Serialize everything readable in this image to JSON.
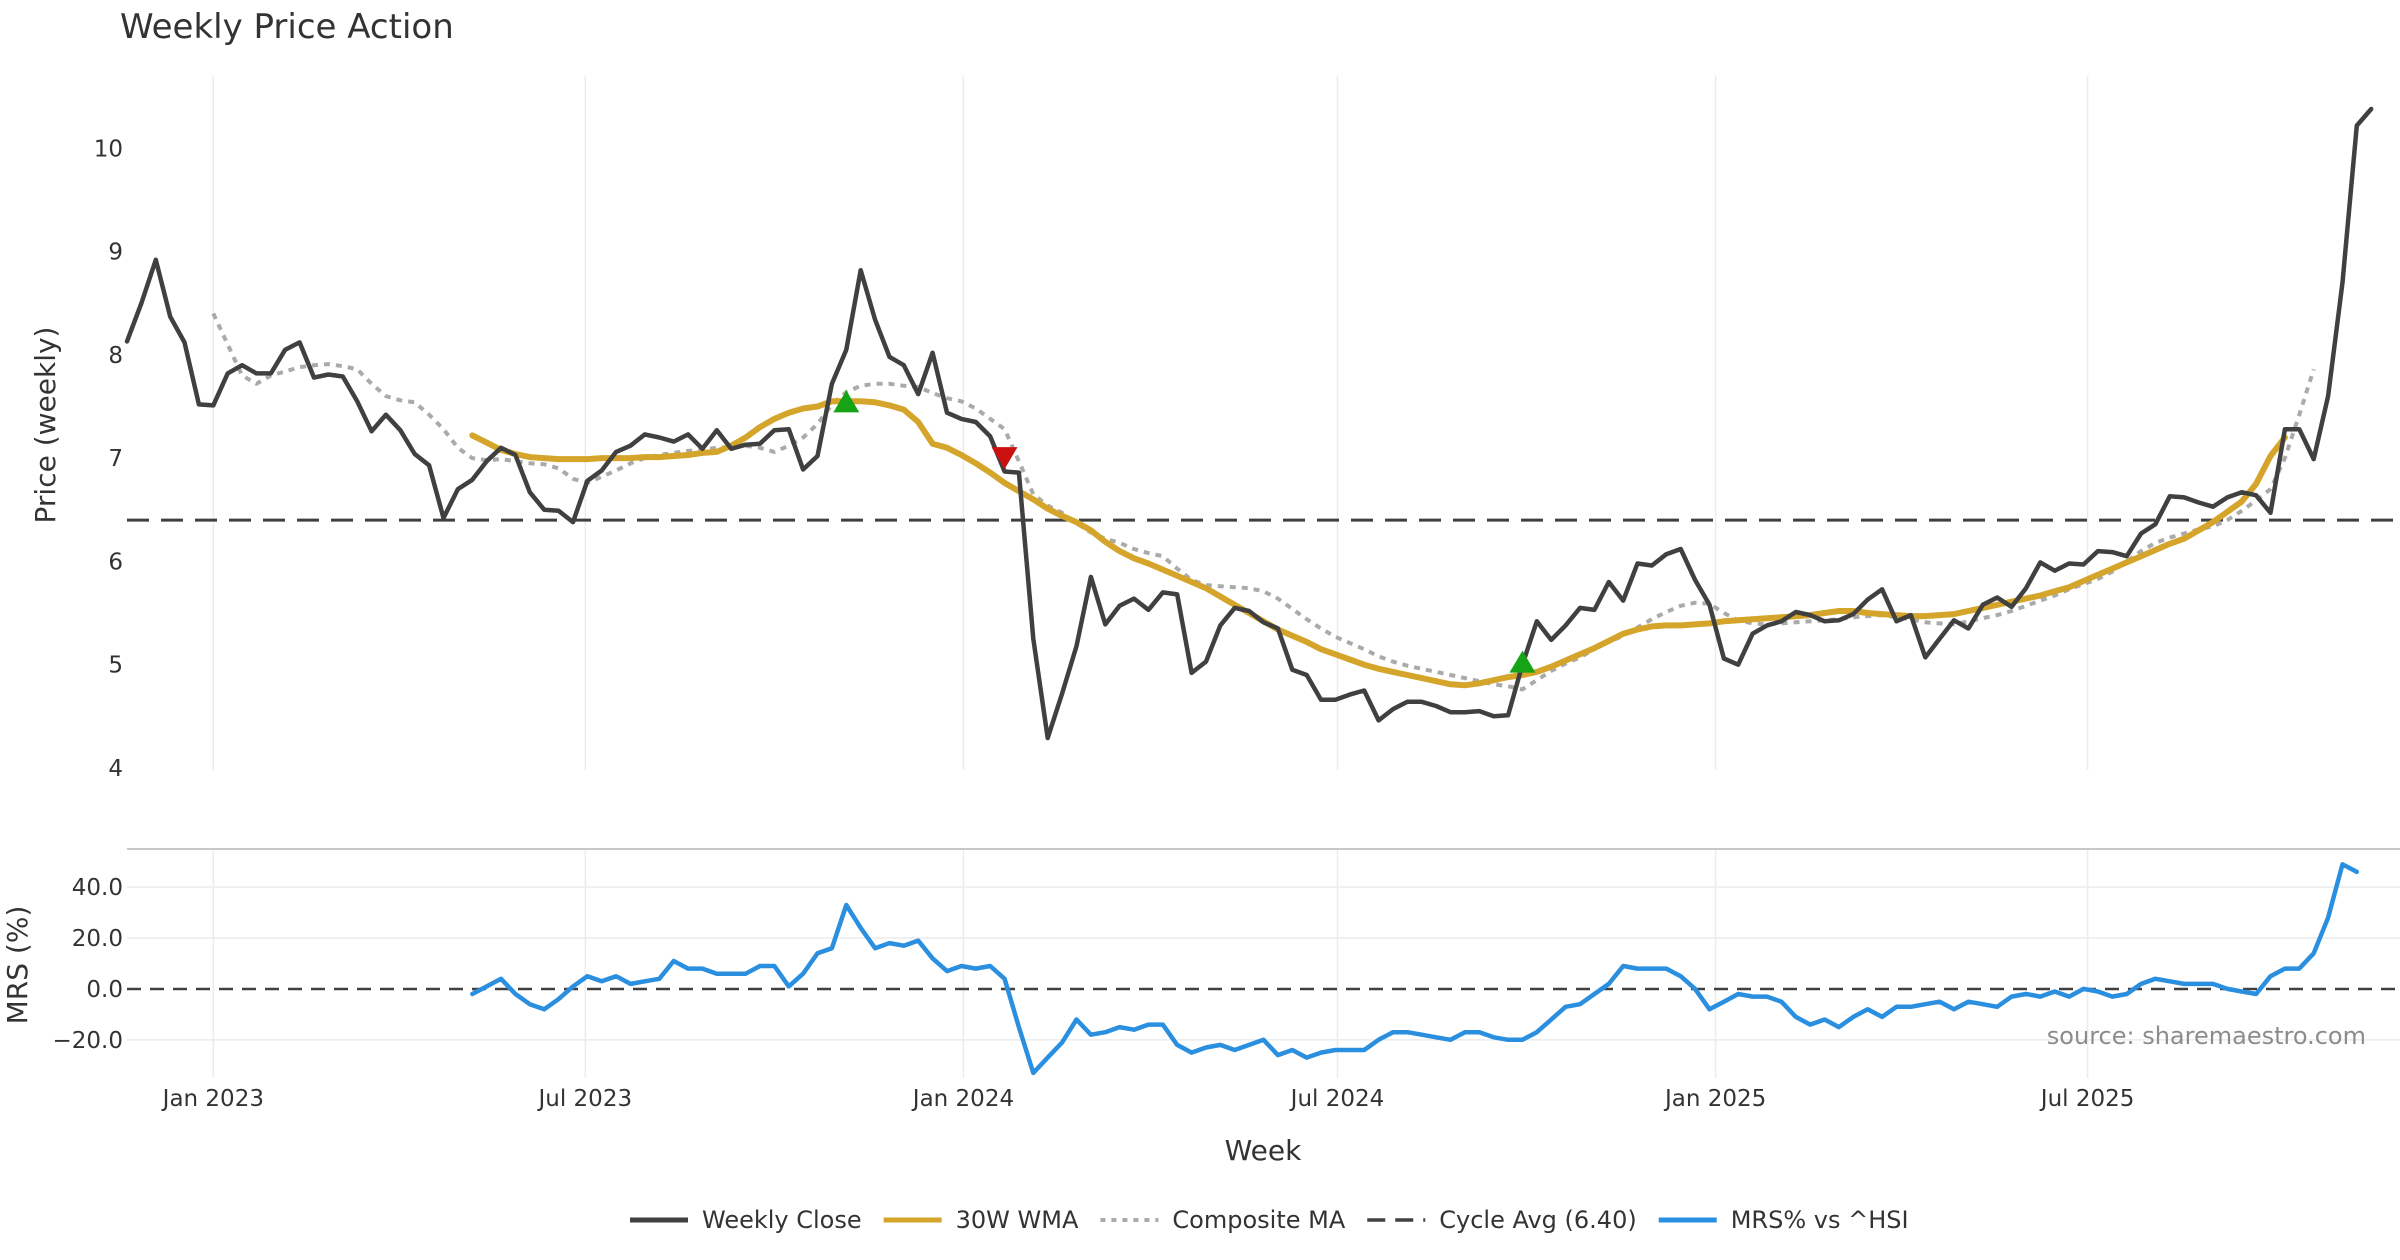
{
  "chart_data": {
    "type": "line",
    "title": "Weekly Price Action",
    "source": "source: sharemaestro.com",
    "xlabel": "Week",
    "x_ticks": [
      {
        "date": "2023-01-01",
        "label": "Jan 2023"
      },
      {
        "date": "2023-07-01",
        "label": "Jul 2023"
      },
      {
        "date": "2024-01-01",
        "label": "Jan 2024"
      },
      {
        "date": "2024-07-01",
        "label": "Jul 2024"
      },
      {
        "date": "2025-01-01",
        "label": "Jan 2025"
      },
      {
        "date": "2025-07-01",
        "label": "Jul 2025"
      }
    ],
    "x_range": [
      "2022-11-20",
      "2025-11-30"
    ],
    "legend_position": "bottom-center",
    "legend": [
      {
        "label": "Weekly Close",
        "color": "#404040",
        "style": "solid"
      },
      {
        "label": "30W WMA",
        "color": "#d4a52a",
        "style": "solid"
      },
      {
        "label": "Composite MA",
        "color": "#aaaaaa",
        "style": "dotted"
      },
      {
        "label": "Cycle Avg (6.40)",
        "color": "#404040",
        "style": "dashed"
      },
      {
        "label": "MRS% vs ^HSI",
        "color": "#2b8fe0",
        "style": "solid"
      }
    ],
    "price_panel": {
      "ylabel": "Price (weekly)",
      "ylim": [
        3.98,
        10.7
      ],
      "yticks": [
        "4",
        "5",
        "6",
        "7",
        "8",
        "9",
        "10"
      ],
      "grid": true,
      "cycle_avg": 6.4,
      "series": [
        {
          "name": "Weekly Close",
          "color": "#404040",
          "start": "2022-11-20",
          "step_days": 7,
          "values": [
            8.13,
            8.5,
            8.92,
            8.37,
            8.12,
            7.52,
            7.51,
            7.82,
            7.9,
            7.82,
            7.82,
            8.05,
            8.12,
            7.78,
            7.81,
            7.79,
            7.55,
            7.26,
            7.42,
            7.27,
            7.04,
            6.93,
            6.42,
            6.7,
            6.79,
            6.97,
            7.1,
            7.03,
            6.67,
            6.5,
            6.49,
            6.38,
            6.78,
            6.88,
            7.06,
            7.12,
            7.23,
            7.2,
            7.16,
            7.23,
            7.09,
            7.27,
            7.09,
            7.13,
            7.14,
            7.27,
            7.28,
            6.89,
            7.02,
            7.72,
            8.05,
            8.82,
            8.34,
            7.98,
            7.9,
            7.62,
            8.02,
            7.44,
            7.38,
            7.35,
            7.21,
            6.87,
            6.86,
            5.25,
            4.29,
            4.72,
            5.18,
            5.85,
            5.39,
            5.57,
            5.64,
            5.53,
            5.7,
            5.68,
            4.92,
            5.03,
            5.38,
            5.55,
            5.52,
            5.41,
            5.35,
            4.95,
            4.9,
            4.66,
            4.66,
            4.71,
            4.75,
            4.46,
            4.57,
            4.64,
            4.64,
            4.6,
            4.54,
            4.54,
            4.55,
            4.5,
            4.51,
            5.0,
            5.42,
            5.24,
            5.38,
            5.55,
            5.53,
            5.8,
            5.62,
            5.98,
            5.96,
            6.07,
            6.12,
            5.82,
            5.58,
            5.06,
            5.0,
            5.3,
            5.38,
            5.42,
            5.51,
            5.48,
            5.42,
            5.43,
            5.49,
            5.63,
            5.73,
            5.42,
            5.48,
            5.07,
            5.25,
            5.43,
            5.35,
            5.58,
            5.65,
            5.56,
            5.74,
            5.99,
            5.91,
            5.98,
            5.97,
            6.1,
            6.09,
            6.05,
            6.27,
            6.36,
            6.63,
            6.62,
            6.57,
            6.53,
            6.62,
            6.67,
            6.64,
            6.47,
            7.28,
            7.28,
            6.99,
            7.6,
            8.7,
            10.22,
            10.38
          ]
        },
        {
          "name": "30W WMA",
          "color": "#d4a52a",
          "start": "2023-05-07",
          "step_days": 7,
          "values": [
            7.22,
            7.15,
            7.08,
            7.04,
            7.01,
            7.0,
            6.99,
            6.99,
            6.99,
            7.0,
            7.0,
            7.0,
            7.01,
            7.01,
            7.02,
            7.03,
            7.05,
            7.06,
            7.12,
            7.2,
            7.3,
            7.38,
            7.44,
            7.48,
            7.5,
            7.55,
            7.55,
            7.55,
            7.54,
            7.51,
            7.47,
            7.35,
            7.14,
            7.1,
            7.03,
            6.95,
            6.86,
            6.76,
            6.68,
            6.6,
            6.51,
            6.44,
            6.38,
            6.3,
            6.19,
            6.1,
            6.03,
            5.98,
            5.92,
            5.86,
            5.8,
            5.74,
            5.66,
            5.58,
            5.5,
            5.42,
            5.34,
            5.28,
            5.22,
            5.15,
            5.1,
            5.05,
            5.0,
            4.96,
            4.93,
            4.9,
            4.87,
            4.84,
            4.81,
            4.8,
            4.82,
            4.85,
            4.88,
            4.9,
            4.93,
            4.98,
            5.04,
            5.1,
            5.16,
            5.23,
            5.3,
            5.34,
            5.37,
            5.38,
            5.38,
            5.39,
            5.4,
            5.42,
            5.43,
            5.44,
            5.45,
            5.46,
            5.47,
            5.48,
            5.5,
            5.52,
            5.52,
            5.5,
            5.49,
            5.48,
            5.47,
            5.47,
            5.48,
            5.49,
            5.52,
            5.55,
            5.58,
            5.61,
            5.64,
            5.67,
            5.71,
            5.75,
            5.81,
            5.87,
            5.93,
            5.99,
            6.05,
            6.11,
            6.17,
            6.22,
            6.3,
            6.38,
            6.48,
            6.58,
            6.75,
            7.02,
            7.2
          ]
        },
        {
          "name": "Composite MA",
          "color": "#aaaaaa",
          "start": "2023-01-01",
          "step_days": 7,
          "values": [
            8.4,
            8.1,
            7.8,
            7.72,
            7.8,
            7.84,
            7.88,
            7.9,
            7.91,
            7.89,
            7.86,
            7.72,
            7.6,
            7.56,
            7.54,
            7.42,
            7.28,
            7.1,
            7.0,
            6.98,
            6.99,
            6.97,
            6.95,
            6.94,
            6.9,
            6.8,
            6.76,
            6.82,
            6.88,
            6.95,
            7.0,
            7.03,
            7.05,
            7.07,
            7.08,
            7.1,
            7.11,
            7.12,
            7.1,
            7.06,
            7.12,
            7.2,
            7.33,
            7.52,
            7.64,
            7.7,
            7.72,
            7.72,
            7.7,
            7.69,
            7.63,
            7.58,
            7.55,
            7.48,
            7.38,
            7.28,
            6.97,
            6.65,
            6.54,
            6.47,
            6.37,
            6.28,
            6.22,
            6.18,
            6.12,
            6.08,
            6.05,
            5.93,
            5.82,
            5.77,
            5.76,
            5.75,
            5.74,
            5.71,
            5.64,
            5.54,
            5.44,
            5.35,
            5.27,
            5.21,
            5.15,
            5.08,
            5.03,
            4.99,
            4.96,
            4.93,
            4.9,
            4.87,
            4.84,
            4.81,
            4.79,
            4.76,
            4.85,
            4.94,
            5.01,
            5.07,
            5.15,
            5.22,
            5.28,
            5.36,
            5.44,
            5.51,
            5.57,
            5.6,
            5.59,
            5.5,
            5.43,
            5.4,
            5.39,
            5.4,
            5.41,
            5.42,
            5.43,
            5.44,
            5.46,
            5.47,
            5.48,
            5.46,
            5.44,
            5.41,
            5.4,
            5.39,
            5.42,
            5.45,
            5.48,
            5.52,
            5.57,
            5.62,
            5.67,
            5.73,
            5.78,
            5.83,
            5.9,
            6.0,
            6.1,
            6.18,
            6.23,
            6.27,
            6.31,
            6.34,
            6.4,
            6.49,
            6.59,
            6.7,
            7.0,
            7.42,
            7.86
          ]
        }
      ],
      "markers": [
        {
          "date": "2023-11-05",
          "value": 7.55,
          "shape": "triangle-up",
          "color": "#16a316"
        },
        {
          "date": "2024-01-21",
          "value": 7.0,
          "shape": "triangle-down",
          "color": "#cc1111"
        },
        {
          "date": "2024-09-29",
          "value": 5.03,
          "shape": "triangle-up",
          "color": "#16a316"
        }
      ]
    },
    "mrs_panel": {
      "ylabel": "MRS (%)",
      "ylim": [
        -35,
        55
      ],
      "yticks": [
        {
          "v": 40,
          "label": "40.0"
        },
        {
          "v": 20,
          "label": "20.0"
        },
        {
          "v": 0,
          "label": "0.0"
        },
        {
          "v": -20,
          "label": "−20.0"
        }
      ],
      "zero_line": 0,
      "series": {
        "name": "MRS% vs ^HSI",
        "color": "#2b8fe0",
        "start": "2023-05-07",
        "step_days": 7,
        "values": [
          -2,
          1,
          4,
          -2,
          -6,
          -8,
          -4,
          1,
          5,
          3,
          5,
          2,
          3,
          4,
          11,
          8,
          8,
          6,
          6,
          6,
          9,
          9,
          1,
          6,
          14,
          16,
          33,
          24,
          16,
          18,
          17,
          19,
          12,
          7,
          9,
          8,
          9,
          4,
          -15,
          -33,
          -27,
          -21,
          -12,
          -18,
          -17,
          -15,
          -16,
          -14,
          -14,
          -22,
          -25,
          -23,
          -22,
          -24,
          -22,
          -20,
          -26,
          -24,
          -27,
          -25,
          -24,
          -24,
          -24,
          -20,
          -17,
          -17,
          -18,
          -19,
          -20,
          -17,
          -17,
          -19,
          -20,
          -20,
          -17,
          -12,
          -7,
          -6,
          -2,
          2,
          9,
          8,
          8,
          8,
          5,
          0,
          -8,
          -5,
          -2,
          -3,
          -3,
          -5,
          -11,
          -14,
          -12,
          -15,
          -11,
          -8,
          -11,
          -7,
          -7,
          -6,
          -5,
          -8,
          -5,
          -6,
          -7,
          -3,
          -2,
          -3,
          -1,
          -3,
          0,
          -1,
          -3,
          -2,
          2,
          4,
          3,
          2,
          2,
          2,
          0,
          -1,
          -2,
          5,
          8,
          8,
          14,
          28,
          49,
          46
        ]
      }
    }
  }
}
